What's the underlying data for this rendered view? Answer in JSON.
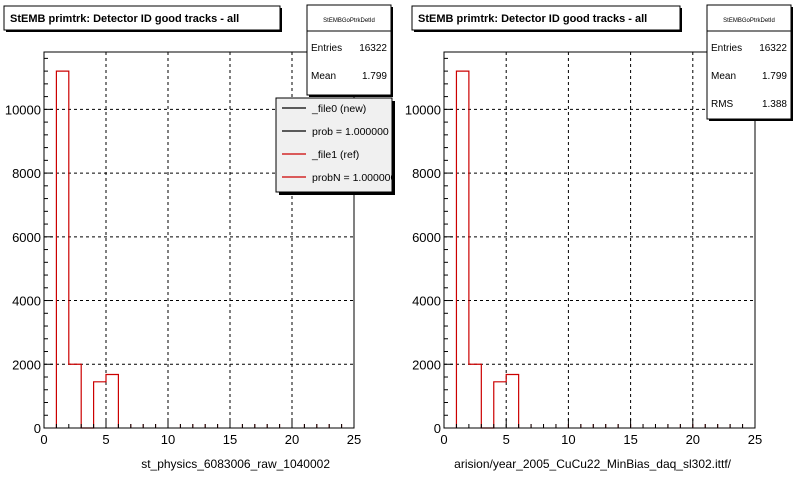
{
  "chart_data": [
    {
      "type": "bar",
      "title": "StEMB primtrk: Detector ID good tracks - all",
      "xlabel": "st_physics_6083006_raw_1040002",
      "ylabel": "",
      "xlim": [
        0,
        25
      ],
      "ylim": [
        0,
        11800
      ],
      "xticks": [
        0,
        5,
        10,
        15,
        20,
        25
      ],
      "yticks": [
        0,
        2000,
        4000,
        6000,
        8000,
        10000
      ],
      "grid": true,
      "bins": [
        {
          "x0": 1,
          "x1": 2,
          "value": 11200
        },
        {
          "x0": 2,
          "x1": 3,
          "value": 2000
        },
        {
          "x0": 3,
          "x1": 4,
          "value": 0
        },
        {
          "x0": 4,
          "x1": 5,
          "value": 1450
        },
        {
          "x0": 5,
          "x1": 6,
          "value": 1680
        }
      ],
      "series_color": "#cc0000",
      "stats": {
        "title": "StEMBGoPtrkDetId",
        "rows": [
          {
            "label": "Entries",
            "value": "16322"
          },
          {
            "label": "Mean",
            "value": "1.799"
          }
        ]
      },
      "legend": {
        "position": "top-right",
        "entries": [
          {
            "label": "_file0 (new)",
            "color": "#000000"
          },
          {
            "label": "prob = 1.000000",
            "color": "#000000"
          },
          {
            "label": "_file1 (ref)",
            "color": "#cc0000"
          },
          {
            "label": "probN = 1.000000",
            "color": "#cc0000"
          }
        ]
      }
    },
    {
      "type": "bar",
      "title": "StEMB primtrk: Detector ID good tracks - all",
      "xlabel": "arision/year_2005_CuCu22_MinBias_daq_sl302.ittf/",
      "ylabel": "",
      "xlim": [
        0,
        25
      ],
      "ylim": [
        0,
        11800
      ],
      "xticks": [
        0,
        5,
        10,
        15,
        20,
        25
      ],
      "yticks": [
        0,
        2000,
        4000,
        6000,
        8000,
        10000
      ],
      "grid": true,
      "bins": [
        {
          "x0": 1,
          "x1": 2,
          "value": 11200
        },
        {
          "x0": 2,
          "x1": 3,
          "value": 2000
        },
        {
          "x0": 3,
          "x1": 4,
          "value": 0
        },
        {
          "x0": 4,
          "x1": 5,
          "value": 1450
        },
        {
          "x0": 5,
          "x1": 6,
          "value": 1680
        }
      ],
      "series_color": "#cc0000",
      "stats": {
        "title": "StEMBGoPtrkDetId",
        "rows": [
          {
            "label": "Entries",
            "value": "16322"
          },
          {
            "label": "Mean",
            "value": "1.799"
          },
          {
            "label": "RMS",
            "value": "1.388"
          }
        ]
      }
    }
  ]
}
